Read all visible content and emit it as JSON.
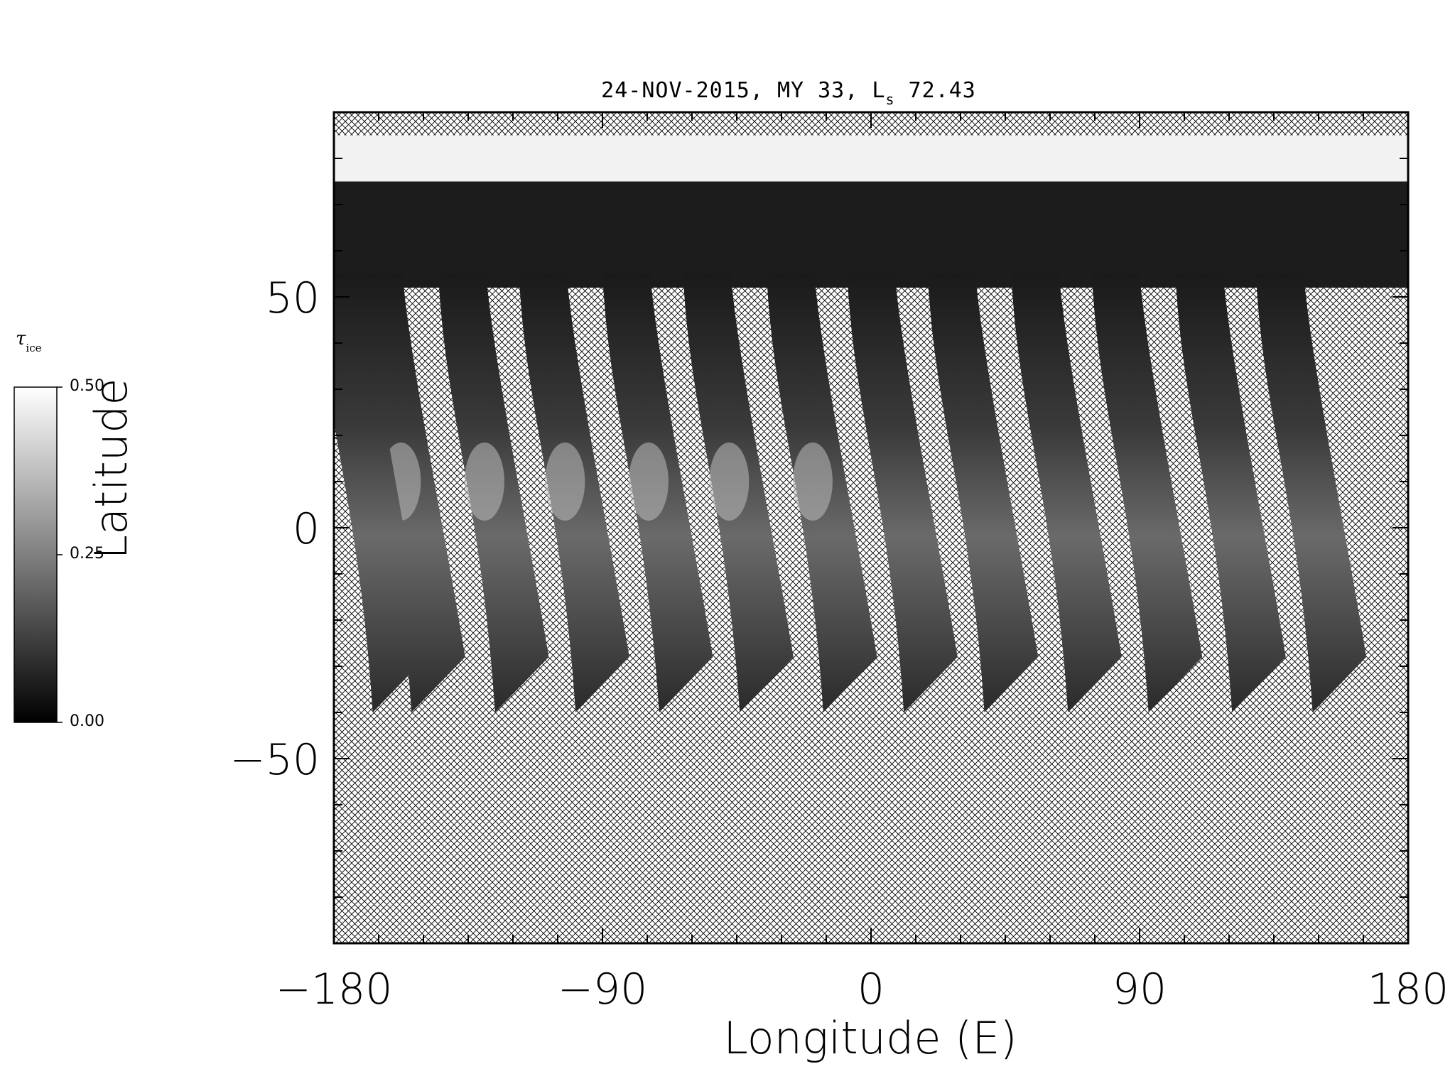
{
  "chart_data": {
    "type": "heatmap",
    "title": "24-NOV-2015, MY 33,  L",
    "title_subscript": "s",
    "title_suffix": " 72.43",
    "xlabel": "Longitude (E)",
    "ylabel": "Latitude",
    "xlim": [
      -180,
      180
    ],
    "ylim": [
      -90,
      90
    ],
    "x_ticks": [
      -180,
      -90,
      0,
      90,
      180
    ],
    "x_tick_labels": [
      "−180",
      "−90",
      "0",
      "90",
      "180"
    ],
    "y_ticks": [
      -50,
      0,
      50
    ],
    "y_tick_labels": [
      "−50",
      "0",
      "50"
    ],
    "colorbar": {
      "label": "τ",
      "label_subscript": "ice",
      "min": 0.0,
      "max": 0.5,
      "ticks": [
        0.0,
        0.25,
        0.5
      ],
      "tick_labels": [
        "0.00",
        "0.25",
        "0.50"
      ],
      "colormap": "grayscale"
    },
    "no_data_fill": "crosshatch",
    "polar_cap_lat_range": [
      75,
      85
    ],
    "swath_count": 13,
    "swath_south_edge_lat": -40,
    "swath_northern_lon_centers": [
      -165,
      -137,
      -110,
      -82,
      -55,
      -27,
      0,
      27,
      55,
      -178,
      82,
      110,
      137
    ]
  }
}
